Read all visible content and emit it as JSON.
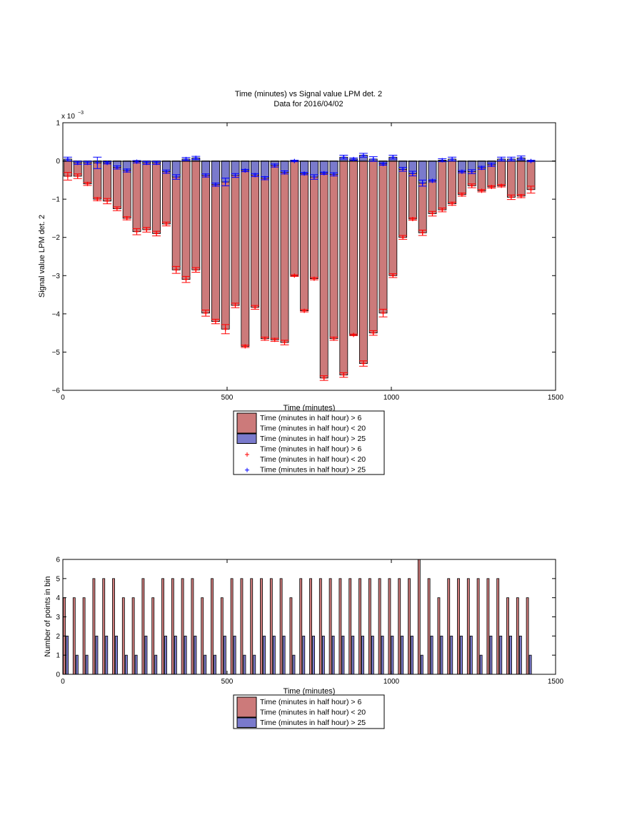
{
  "chart_data": [
    {
      "type": "bar",
      "title": "Time (minutes) vs Signal value LPM det. 2",
      "subtitle": "Data for 2016/04/02",
      "xlabel": "Time (minutes)",
      "ylabel": "Signal value LPM det. 2",
      "y_exponent_label": "x 10",
      "y_exponent_power": "−3",
      "xlim": [
        0,
        1500
      ],
      "ylim": [
        -6,
        1
      ],
      "x_ticks": [
        0,
        500,
        1000,
        1500
      ],
      "x_tick_labels": [
        "0",
        "500",
        "1000",
        "1500"
      ],
      "y_ticks": [
        -6,
        -5,
        -4,
        -3,
        -2,
        -1,
        0,
        1
      ],
      "y_tick_labels": [
        "−6",
        "−5",
        "−4",
        "−3",
        "−2",
        "−1",
        "0",
        "1"
      ],
      "grid": false,
      "legend_position": "below",
      "x": [
        15,
        45,
        75,
        105,
        135,
        165,
        195,
        225,
        255,
        285,
        315,
        345,
        375,
        405,
        435,
        465,
        495,
        525,
        555,
        585,
        615,
        645,
        675,
        705,
        735,
        765,
        795,
        825,
        855,
        885,
        915,
        945,
        975,
        1005,
        1035,
        1065,
        1095,
        1125,
        1155,
        1185,
        1215,
        1245,
        1275,
        1305,
        1335,
        1365,
        1395,
        1425
      ],
      "series": [
        {
          "name": "Time (minutes in half hour) > 6\nTime (minutes in half hour) < 20",
          "color": "#cc7a7a",
          "values": [
            -0.4,
            -0.4,
            -0.6,
            -1.0,
            -1.05,
            -1.25,
            -1.5,
            -1.85,
            -1.8,
            -1.9,
            -1.65,
            -2.85,
            -3.1,
            -2.85,
            -3.98,
            -4.2,
            -4.4,
            -3.78,
            -4.85,
            -3.83,
            -4.65,
            -4.68,
            -4.75,
            -3.0,
            -3.92,
            -3.08,
            -5.68,
            -4.65,
            -5.6,
            -4.55,
            -5.3,
            -4.5,
            -3.98,
            -3.0,
            -2.0,
            -1.52,
            -1.88,
            -1.38,
            -1.28,
            -1.12,
            -0.88,
            -0.65,
            -0.78,
            -0.68,
            -0.65,
            -0.95,
            -0.92,
            -0.75
          ],
          "errors": [
            0.1,
            0.06,
            0.04,
            0.04,
            0.07,
            0.05,
            0.04,
            0.08,
            0.06,
            0.06,
            0.05,
            0.09,
            0.08,
            0.06,
            0.08,
            0.06,
            0.12,
            0.06,
            0.03,
            0.05,
            0.04,
            0.04,
            0.06,
            0.02,
            0.03,
            0.03,
            0.06,
            0.04,
            0.06,
            0.02,
            0.07,
            0.06,
            0.1,
            0.05,
            0.05,
            0.03,
            0.07,
            0.06,
            0.05,
            0.04,
            0.04,
            0.05,
            0.03,
            0.03,
            0.03,
            0.06,
            0.04,
            0.09
          ]
        },
        {
          "name": "Time (minutes in half hour) > 25",
          "color": "#7a7acc",
          "values": [
            0.05,
            -0.05,
            -0.05,
            -0.05,
            -0.05,
            -0.17,
            -0.25,
            -0.02,
            -0.05,
            -0.05,
            -0.28,
            -0.42,
            0.05,
            0.08,
            -0.38,
            -0.62,
            -0.55,
            -0.38,
            -0.25,
            -0.37,
            -0.45,
            -0.12,
            -0.3,
            0.0,
            -0.33,
            -0.42,
            -0.32,
            -0.35,
            0.1,
            0.05,
            0.15,
            0.05,
            -0.08,
            0.1,
            -0.22,
            -0.33,
            -0.58,
            -0.52,
            0.02,
            0.05,
            -0.28,
            -0.28,
            -0.18,
            -0.1,
            0.05,
            0.05,
            0.08,
            0.0
          ],
          "errors": [
            0.05,
            0.04,
            0.04,
            0.15,
            0.03,
            0.04,
            0.04,
            0.03,
            0.04,
            0.04,
            0.04,
            0.06,
            0.04,
            0.04,
            0.04,
            0.04,
            0.1,
            0.05,
            0.03,
            0.04,
            0.04,
            0.04,
            0.04,
            0.02,
            0.03,
            0.06,
            0.03,
            0.04,
            0.05,
            0.03,
            0.05,
            0.06,
            0.03,
            0.05,
            0.05,
            0.06,
            0.08,
            0.03,
            0.04,
            0.05,
            0.03,
            0.05,
            0.04,
            0.04,
            0.05,
            0.05,
            0.05,
            0.02
          ]
        }
      ],
      "legend": [
        {
          "label": "Time (minutes in half hour) > 6\nTime (minutes in half hour) < 20",
          "kind": "patch",
          "color": "#cc7a7a"
        },
        {
          "label": "Time (minutes in half hour) > 25",
          "kind": "patch",
          "color": "#7a7acc"
        },
        {
          "label": "Time (minutes in half hour) > 6\nTime (minutes in half hour) < 20",
          "kind": "marker",
          "color": "#ff0000"
        },
        {
          "label": "Time (minutes in half hour) > 25",
          "kind": "marker",
          "color": "#0000ff"
        }
      ]
    },
    {
      "type": "bar",
      "title": "",
      "xlabel": "Time (minutes)",
      "ylabel": "Number of points in bin",
      "xlim": [
        0,
        1500
      ],
      "ylim": [
        0,
        6
      ],
      "x_ticks": [
        0,
        500,
        1000,
        1500
      ],
      "x_tick_labels": [
        "0",
        "500",
        "1000",
        "1500"
      ],
      "y_ticks": [
        0,
        1,
        2,
        3,
        4,
        5,
        6
      ],
      "y_tick_labels": [
        "0",
        "1",
        "2",
        "3",
        "4",
        "5",
        "6"
      ],
      "grid": false,
      "legend_position": "below",
      "x": [
        15,
        45,
        75,
        105,
        135,
        165,
        195,
        225,
        255,
        285,
        315,
        345,
        375,
        405,
        435,
        465,
        495,
        525,
        555,
        585,
        615,
        645,
        675,
        705,
        735,
        765,
        795,
        825,
        855,
        885,
        915,
        945,
        975,
        1005,
        1035,
        1065,
        1095,
        1125,
        1155,
        1185,
        1215,
        1245,
        1275,
        1305,
        1335,
        1365,
        1395,
        1425
      ],
      "series": [
        {
          "name": "Time (minutes in half hour) > 6\nTime (minutes in half hour) < 20",
          "color": "#cc7a7a",
          "values": [
            4,
            4,
            4,
            5,
            5,
            5,
            4,
            4,
            5,
            4,
            5,
            5,
            5,
            5,
            4,
            5,
            4,
            5,
            5,
            5,
            5,
            5,
            5,
            4,
            5,
            5,
            5,
            5,
            5,
            5,
            5,
            5,
            5,
            5,
            5,
            5,
            6,
            5,
            4,
            5,
            5,
            5,
            5,
            5,
            5,
            4,
            4,
            4
          ]
        },
        {
          "name": "Time (minutes in half hour) > 25",
          "color": "#7a7acc",
          "values": [
            2,
            1,
            1,
            2,
            2,
            2,
            1,
            1,
            2,
            1,
            2,
            2,
            2,
            2,
            1,
            1,
            2,
            2,
            1,
            1,
            2,
            2,
            2,
            1,
            2,
            2,
            2,
            2,
            2,
            2,
            2,
            2,
            2,
            2,
            2,
            2,
            1,
            2,
            2,
            2,
            2,
            2,
            1,
            2,
            2,
            2,
            2,
            1
          ]
        }
      ],
      "legend": [
        {
          "label": "Time (minutes in half hour) > 6\nTime (minutes in half hour) < 20",
          "kind": "patch",
          "color": "#cc7a7a"
        },
        {
          "label": "Time (minutes in half hour) > 25",
          "kind": "patch",
          "color": "#7a7acc"
        }
      ]
    }
  ]
}
